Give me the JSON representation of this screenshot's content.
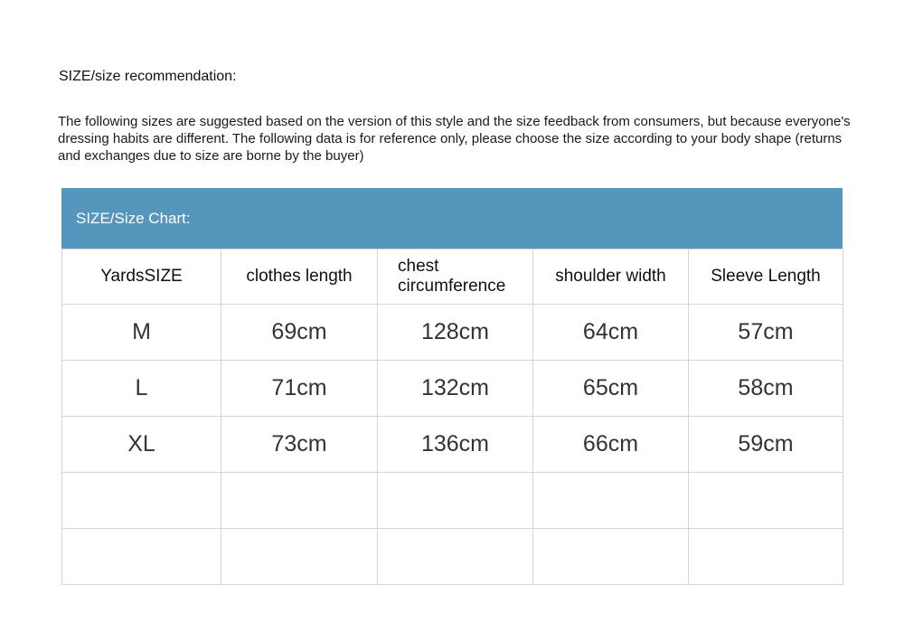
{
  "title": "SIZE/size recommendation:",
  "intro": "The following sizes are suggested based on the version of this style and the size feedback from consumers, but because everyone's dressing habits are different. The following data is for reference only, please choose the size according to your body shape (returns and exchanges due to size are borne by the buyer)",
  "banner": {
    "label": "SIZE/Size Chart:",
    "color": "#5596bd"
  },
  "columns": [
    "YardsSIZE",
    "clothes length",
    "chest circumference",
    "shoulder width",
    "Sleeve Length"
  ],
  "rows": [
    [
      "M",
      "69cm",
      "128cm",
      "64cm",
      "57cm"
    ],
    [
      "L",
      "71cm",
      "132cm",
      "65cm",
      "58cm"
    ],
    [
      "XL",
      "73cm",
      "136cm",
      "66cm",
      "59cm"
    ]
  ]
}
